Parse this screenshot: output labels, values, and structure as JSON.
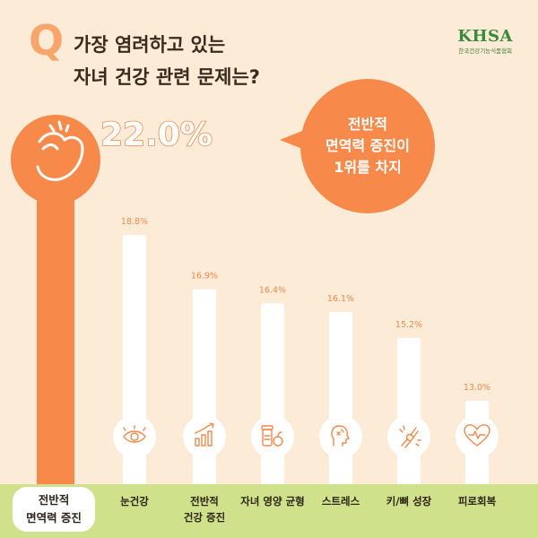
{
  "header": {
    "q_mark": "Q",
    "question_line1": "가장 염려하고 있는",
    "question_line2": "자녀 건강 관련 문제는?"
  },
  "logo": {
    "main": "KHSA",
    "sub": "한국건강기능식품협회"
  },
  "bubble": {
    "line1": "전반적",
    "line2": "면역력 증진이",
    "line3": "1위를 차지"
  },
  "colors": {
    "background": "#fcebd7",
    "highlight_bar": "#f7894a",
    "other_bars": "#ffffff",
    "value_text": "#f08a4c",
    "category_band": "#cfe18a",
    "icon_stroke": "#f08a4c"
  },
  "chart_data": {
    "type": "bar",
    "categories": [
      "전반적 면역력 증진",
      "눈건강",
      "전반적 건강 증진",
      "자녀 영양 균형",
      "스트레스",
      "키/뼈 성장",
      "피로회복"
    ],
    "category_lines": [
      [
        "전반적",
        "면역력 증진"
      ],
      [
        "눈건강"
      ],
      [
        "전반적",
        "건강 증진"
      ],
      [
        "자녀 영양 균형"
      ],
      [
        "스트레스"
      ],
      [
        "키/뼈 성장"
      ],
      [
        "피로회복"
      ]
    ],
    "values": [
      22.0,
      18.8,
      16.9,
      16.4,
      16.1,
      15.2,
      13.0
    ],
    "value_labels": [
      "22.0%",
      "18.8%",
      "16.9%",
      "16.4%",
      "16.1%",
      "15.2%",
      "13.0%"
    ],
    "icons": [
      "flexed-arm-icon",
      "eye-icon",
      "growth-chart-icon",
      "supplement-bottle-icon",
      "stress-head-icon",
      "bone-joint-icon",
      "heart-pulse-icon"
    ],
    "highlight_index": 0,
    "ylim": [
      0,
      22.0
    ]
  }
}
